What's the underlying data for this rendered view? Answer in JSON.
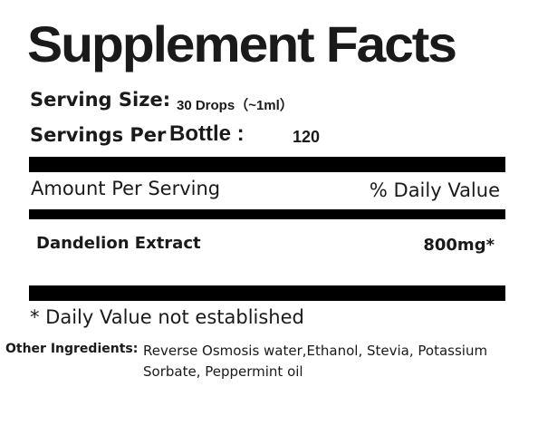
{
  "header": {
    "title": "Supplement Facts"
  },
  "serving": {
    "size_label": "Serving Size:",
    "size_value": "30 Drops（~1ml）",
    "per_label": "Servings Per",
    "per_label_2": "Bottle :",
    "per_value": "120"
  },
  "table": {
    "header_left": "Amount Per Serving",
    "header_right": "% Daily Value",
    "rows": [
      [
        "Dandelion Extract",
        "800mg*"
      ]
    ]
  },
  "footnote": "* Daily Value not established",
  "ingredients": {
    "label": "Other Ingredients:",
    "text": "Reverse Osmosis water,Ethanol, Stevia, Potassium Sorbate, Peppermint oil"
  }
}
